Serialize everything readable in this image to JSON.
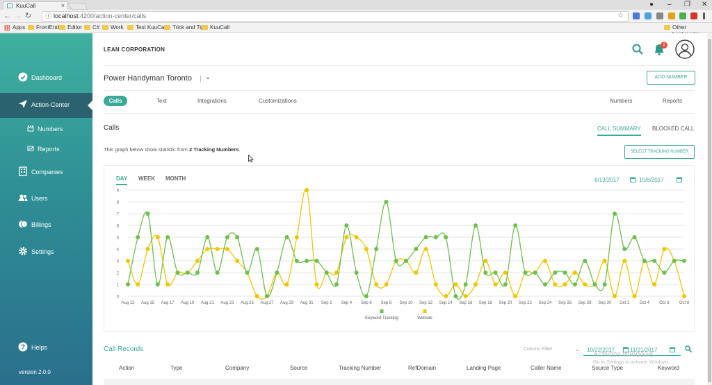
{
  "browser": {
    "tab_title": "KuuCall",
    "url_host": "localhost",
    "url_rest": ":4200/action-center/calls",
    "bookmarks": [
      "Apps",
      "FrontEnd",
      "Editor",
      "C#",
      "Work",
      "Test KuuCall",
      "Trick and Tip",
      "KuuCall"
    ],
    "other_bookmarks": "Other bookmarks"
  },
  "sidebar": {
    "items": [
      {
        "label": "Dashboard",
        "icon": "dashboard-icon"
      },
      {
        "label": "Action-Center",
        "icon": "send-icon"
      },
      {
        "label": "Companies",
        "icon": "building-icon"
      },
      {
        "label": "Users",
        "icon": "users-icon"
      },
      {
        "label": "Billings",
        "icon": "billing-icon"
      },
      {
        "label": "Settings",
        "icon": "gear-icon"
      },
      {
        "label": "Helps",
        "icon": "help-icon"
      }
    ],
    "subitems": [
      {
        "label": "Numbers",
        "icon": "numbers-icon"
      },
      {
        "label": "Reports",
        "icon": "reports-icon"
      }
    ],
    "version": "version 2.0.0"
  },
  "header": {
    "company": "LEAN CORPORATION",
    "notification_count": "2"
  },
  "number_bar": {
    "title": "Power Handyman Toronto",
    "add_button": "ADD NUMBER"
  },
  "tabs": {
    "calls": "Calls",
    "text": "Text",
    "integrations": "Integrations",
    "customizations": "Customizations",
    "numbers": "Numbers",
    "reports": "Reports"
  },
  "calls": {
    "title": "Calls",
    "summary_tab": "CALL SUMMARY",
    "blocked_tab": "BLOCKED CALL",
    "intro_prefix": "This graph below show statistic from ",
    "intro_bold": "2 Tracking Numbers",
    "intro_suffix": ".",
    "select_button": "SELECT TRACKING NUMBER"
  },
  "chart_controls": {
    "day": "DAY",
    "week": "WEEK",
    "month": "MONTH",
    "from": "8/13/2017",
    "to": "10/8/2017"
  },
  "chart_data": {
    "type": "line",
    "x": [
      "Aug 13",
      "Aug 14",
      "Aug 15",
      "Aug 16",
      "Aug 17",
      "Aug 18",
      "Aug 19",
      "Aug 20",
      "Aug 21",
      "Aug 22",
      "Aug 23",
      "Aug 24",
      "Aug 25",
      "Aug 26",
      "Aug 27",
      "Aug 28",
      "Aug 29",
      "Aug 30",
      "Aug 31",
      "Sep 1",
      "Sep 2",
      "Sep 3",
      "Sep 4",
      "Sep 5",
      "Sep 6",
      "Sep 7",
      "Sep 8",
      "Sep 9",
      "Sep 10",
      "Sep 11",
      "Sep 12",
      "Sep 13",
      "Sep 14",
      "Sep 15",
      "Sep 16",
      "Sep 17",
      "Sep 18",
      "Sep 19",
      "Sep 20",
      "Sep 21",
      "Sep 22",
      "Sep 23",
      "Sep 24",
      "Sep 25",
      "Sep 26",
      "Sep 27",
      "Sep 28",
      "Sep 29",
      "Sep 30",
      "Oct 1",
      "Oct 2",
      "Oct 3",
      "Oct 4",
      "Oct 5",
      "Oct 6",
      "Oct 7",
      "Oct 8"
    ],
    "tick_labels": [
      "Aug 13",
      "Aug 15",
      "Aug 17",
      "Aug 19",
      "Aug 21",
      "Aug 23",
      "Aug 25",
      "Aug 27",
      "Aug 29",
      "Aug 31",
      "Sep 2",
      "Sep 4",
      "Sep 6",
      "Sep 8",
      "Sep 10",
      "Sep 12",
      "Sep 14",
      "Sep 16",
      "Sep 18",
      "Sep 20",
      "Sep 22",
      "Sep 24",
      "Sep 26",
      "Sep 28",
      "Sep 30",
      "Oct 2",
      "Oct 4",
      "Oct 6",
      "Oct 8"
    ],
    "ylim": [
      0,
      9
    ],
    "yticks": [
      0,
      1,
      2,
      3,
      4,
      5,
      6,
      7,
      8,
      9
    ],
    "grid": true,
    "legend": "bottom-center",
    "series": [
      {
        "name": "Keyword Tracking",
        "color": "#6cc04a",
        "values": [
          1,
          5,
          7,
          1,
          5,
          2,
          2,
          2,
          5,
          2,
          5,
          5,
          2,
          4,
          0,
          2,
          5,
          3,
          3,
          3,
          2,
          1,
          6,
          2,
          0,
          4,
          8,
          3,
          3,
          4,
          5,
          5,
          5,
          0,
          1,
          6,
          2,
          2,
          1,
          6,
          2,
          2,
          1,
          2,
          2,
          1,
          3,
          1,
          1,
          7,
          4,
          5,
          3,
          3,
          2,
          3,
          3
        ]
      },
      {
        "name": "Website",
        "color": "#f2c500",
        "values": [
          3,
          1,
          4,
          5,
          1,
          2,
          2,
          3,
          4,
          4,
          4,
          3,
          2,
          0,
          0,
          2,
          1,
          5,
          9,
          1,
          2,
          2,
          5,
          5,
          4,
          1,
          1,
          3,
          3,
          2,
          4,
          1,
          0,
          1,
          0,
          1,
          3,
          1,
          2,
          0,
          2,
          2,
          3,
          1,
          1,
          2,
          1,
          1,
          3,
          0,
          3,
          0,
          3,
          1,
          4,
          3,
          0
        ]
      }
    ]
  },
  "records": {
    "title": "Call Records",
    "column_filter": "Column Filter",
    "from": "10/22/2017",
    "to": "11/21/2017",
    "columns": [
      "Action",
      "Type",
      "Company",
      "Source",
      "Tracking Number",
      "RefDomain",
      "Landing Page",
      "Caller Name",
      "Source Type",
      "Keyword"
    ]
  },
  "watermark": {
    "line1": "Activate Windows",
    "line2": "Go to Settings to activate Windows."
  }
}
